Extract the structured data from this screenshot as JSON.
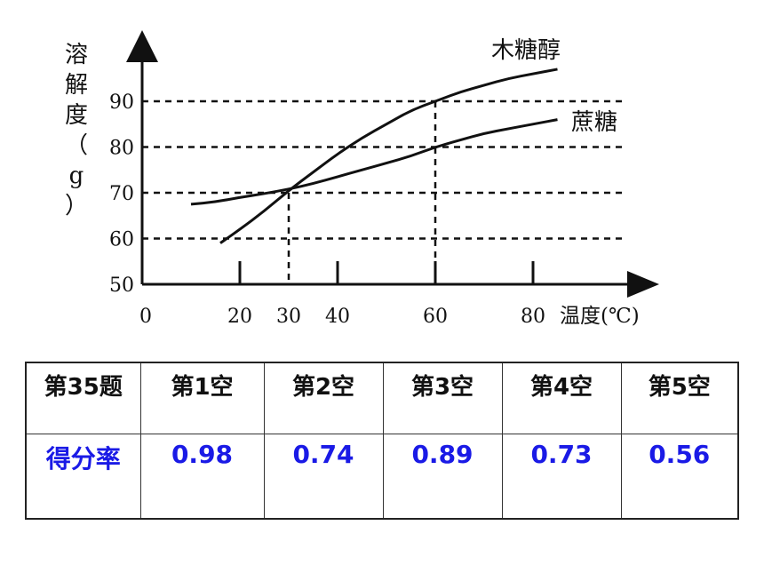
{
  "chart_data": {
    "type": "line",
    "ylabel": "溶解度（g）",
    "xlabel": "温度(℃)",
    "x_ticks": [
      0,
      20,
      30,
      40,
      60,
      80
    ],
    "y_ticks": [
      50,
      60,
      70,
      80,
      90
    ],
    "xlim": [
      0,
      105
    ],
    "ylim": [
      50,
      104
    ],
    "grid": "dashed guide lines at 60, 70, 80, 90 and drop lines at x=30 and x=60",
    "series": [
      {
        "name": "木糖醇",
        "x": [
          16,
          20,
          25,
          30,
          35,
          40,
          45,
          50,
          55,
          60,
          65,
          70,
          75,
          80,
          85
        ],
        "y": [
          59,
          62,
          66,
          70.5,
          74.5,
          78.5,
          82,
          85,
          88,
          90,
          92,
          93.5,
          95,
          96,
          97
        ]
      },
      {
        "name": "蔗糖",
        "x": [
          10,
          15,
          20,
          25,
          30,
          35,
          40,
          45,
          50,
          55,
          60,
          65,
          70,
          75,
          80,
          85
        ],
        "y": [
          67.5,
          68,
          69,
          69.8,
          70.8,
          72,
          73.5,
          75,
          76.5,
          78,
          80,
          81.5,
          83,
          84,
          85,
          86
        ]
      }
    ],
    "guides": [
      {
        "x": 30,
        "y": 70
      },
      {
        "x": 60,
        "y": 90
      },
      {
        "x": 60,
        "y": 80
      }
    ]
  },
  "table": {
    "header": [
      "第35题",
      "第1空",
      "第2空",
      "第3空",
      "第4空",
      "第5空"
    ],
    "row": [
      "得分率",
      "0.98",
      "0.74",
      "0.89",
      "0.73",
      "0.56"
    ]
  },
  "colors": {
    "axis": "#111111",
    "row_header": "#c00000",
    "rate_values": "#1a1ae6"
  }
}
